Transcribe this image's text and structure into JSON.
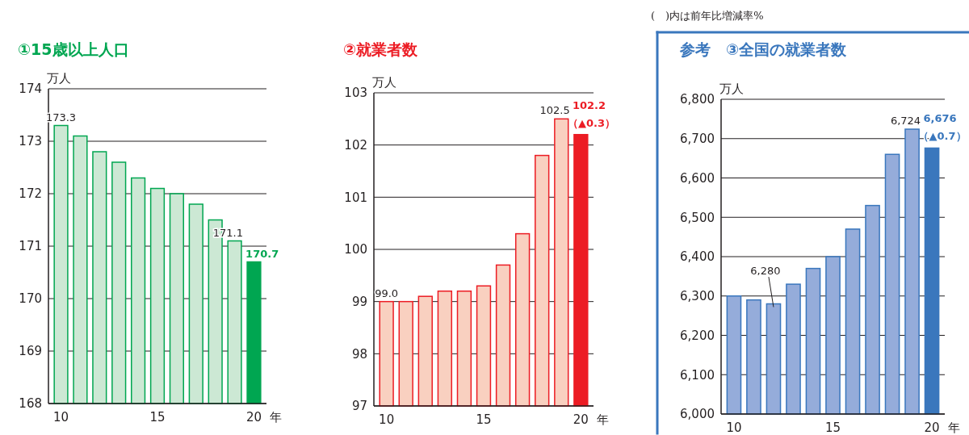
{
  "chart_data": [
    {
      "type": "bar",
      "title": "①15歳以上人口",
      "ylabel": "万人",
      "xlabel": "年",
      "categories": [
        "10",
        null,
        null,
        null,
        null,
        "15",
        null,
        null,
        null,
        null,
        "20"
      ],
      "values": [
        173.3,
        173.1,
        172.8,
        172.6,
        172.3,
        172.1,
        172.0,
        171.8,
        171.5,
        171.1,
        170.7
      ],
      "colors": [
        "#cce8d4",
        "#cce8d4",
        "#cce8d4",
        "#cce8d4",
        "#cce8d4",
        "#cce8d4",
        "#cce8d4",
        "#cce8d4",
        "#cce8d4",
        "#cce8d4",
        "#00a651"
      ],
      "value_labels": [
        "173.3",
        null,
        null,
        null,
        null,
        null,
        null,
        null,
        null,
        "171.1",
        "170.7"
      ],
      "ylim": [
        168,
        174
      ],
      "yticks": [
        168,
        169,
        170,
        171,
        172,
        173,
        174
      ],
      "grid": "y"
    },
    {
      "type": "bar",
      "title": "②就業者数",
      "ylabel": "万人",
      "xlabel": "年",
      "categories": [
        "10",
        null,
        null,
        null,
        null,
        "15",
        null,
        null,
        null,
        null,
        "20"
      ],
      "values": [
        99.0,
        99.0,
        99.1,
        99.2,
        99.2,
        99.3,
        99.7,
        100.3,
        101.8,
        102.5,
        102.2
      ],
      "colors": [
        "#f9d0c0",
        "#f9d0c0",
        "#f9d0c0",
        "#f9d0c0",
        "#f9d0c0",
        "#f9d0c0",
        "#f9d0c0",
        "#f9d0c0",
        "#f9d0c0",
        "#f9d0c0",
        "#ec1c24"
      ],
      "value_labels": [
        "99.0",
        null,
        null,
        null,
        null,
        null,
        null,
        null,
        null,
        "102.5",
        "102.2"
      ],
      "annotations": [
        {
          "text": "（▲0.3）",
          "x": "20",
          "y": 102.2
        }
      ],
      "ylim": [
        97,
        103
      ],
      "yticks": [
        97,
        98,
        99,
        100,
        101,
        102,
        103
      ],
      "grid": "y"
    },
    {
      "type": "bar",
      "title": "参考　③全国の就業者数",
      "ylabel": "万人",
      "xlabel": "年",
      "categories": [
        "10",
        null,
        null,
        null,
        null,
        "15",
        null,
        null,
        null,
        null,
        "20"
      ],
      "values": [
        6300,
        6290,
        6280,
        6330,
        6370,
        6400,
        6470,
        6530,
        6660,
        6724,
        6676
      ],
      "colors": [
        "#95acda",
        "#95acda",
        "#95acda",
        "#95acda",
        "#95acda",
        "#95acda",
        "#95acda",
        "#95acda",
        "#95acda",
        "#95acda",
        "#3a77bd"
      ],
      "value_labels": [
        null,
        null,
        "6,280",
        null,
        null,
        null,
        null,
        null,
        null,
        "6,724",
        "6,676"
      ],
      "annotations": [
        "(　)内は前年比増減率%",
        {
          "text": "（▲0.7）",
          "x": "20",
          "y": 6676
        }
      ],
      "ylim": [
        6000,
        6800
      ],
      "yticks": [
        {
          "value": 6000,
          "label": "6,000"
        },
        {
          "value": 6100,
          "label": "6,100"
        },
        {
          "value": 6200,
          "label": "6,200"
        },
        {
          "value": 6300,
          "label": "6,300"
        },
        {
          "value": 6400,
          "label": "6,400"
        },
        {
          "value": 6500,
          "label": "6,500"
        },
        {
          "value": 6600,
          "label": "6,600"
        },
        {
          "value": 6700,
          "label": "6,700"
        },
        {
          "value": 6800,
          "label": "6,800"
        }
      ],
      "grid": "y"
    }
  ]
}
